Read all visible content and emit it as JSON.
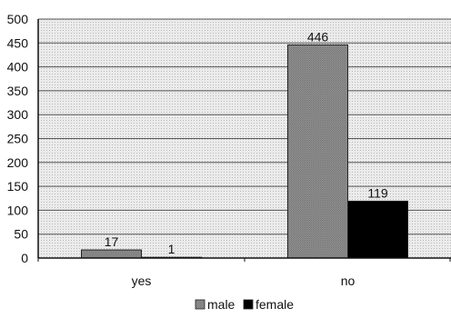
{
  "chart_data": {
    "type": "bar",
    "categories": [
      "yes",
      "no"
    ],
    "series": [
      {
        "name": "male",
        "values": [
          17,
          446
        ],
        "color": "#8c8c8c"
      },
      {
        "name": "female",
        "values": [
          1,
          119
        ],
        "color": "#000000"
      }
    ],
    "ylim": [
      0,
      500
    ],
    "yticks": [
      0,
      50,
      100,
      150,
      200,
      250,
      300,
      350,
      400,
      450,
      500
    ],
    "grid": true,
    "legend": "bottom",
    "plot_background": "#e6e6e6",
    "gridline_color": "#555555"
  }
}
